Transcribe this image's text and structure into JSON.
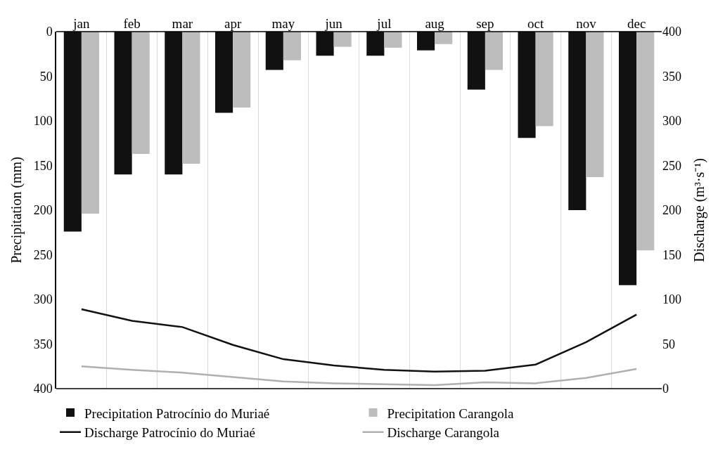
{
  "chart_data": {
    "type": "bar",
    "categories": [
      "jan",
      "feb",
      "mar",
      "apr",
      "may",
      "jun",
      "jul",
      "aug",
      "sep",
      "oct",
      "nov",
      "dec"
    ],
    "ylabel": "Precipitation (mm)",
    "y2label": "Discharge (m³·s⁻¹)",
    "ylim": [
      400,
      0
    ],
    "yticks": [
      0,
      50,
      100,
      150,
      200,
      250,
      300,
      350,
      400
    ],
    "y2lim": [
      0,
      400
    ],
    "y2ticks": [
      0,
      50,
      100,
      150,
      200,
      250,
      300,
      350,
      400
    ],
    "grid": "x",
    "legend": "bottom",
    "series": [
      {
        "name": "Precipitation Patrocínio do Muriaé",
        "color": "#111111",
        "values": [
          224,
          160,
          160,
          91,
          43,
          27,
          27,
          21,
          65,
          119,
          200,
          284
        ]
      },
      {
        "name": "Precipitation Carangola",
        "color": "#bdbdbd",
        "values": [
          204,
          137,
          148,
          85,
          32,
          17,
          18,
          14,
          43,
          106,
          163,
          245
        ]
      },
      {
        "name": "Discharge Patrocínio do Muriaé",
        "type": "line",
        "axis": "y2",
        "color": "#111111",
        "values": [
          89,
          76,
          69,
          49,
          33,
          26,
          21,
          19,
          20,
          27,
          52,
          83
        ]
      },
      {
        "name": "Discharge Carangola",
        "type": "line",
        "axis": "y2",
        "color": "#b0b0b0",
        "values": [
          25,
          21,
          18,
          13,
          8,
          6,
          5,
          4,
          7,
          6,
          12,
          22
        ]
      }
    ]
  }
}
